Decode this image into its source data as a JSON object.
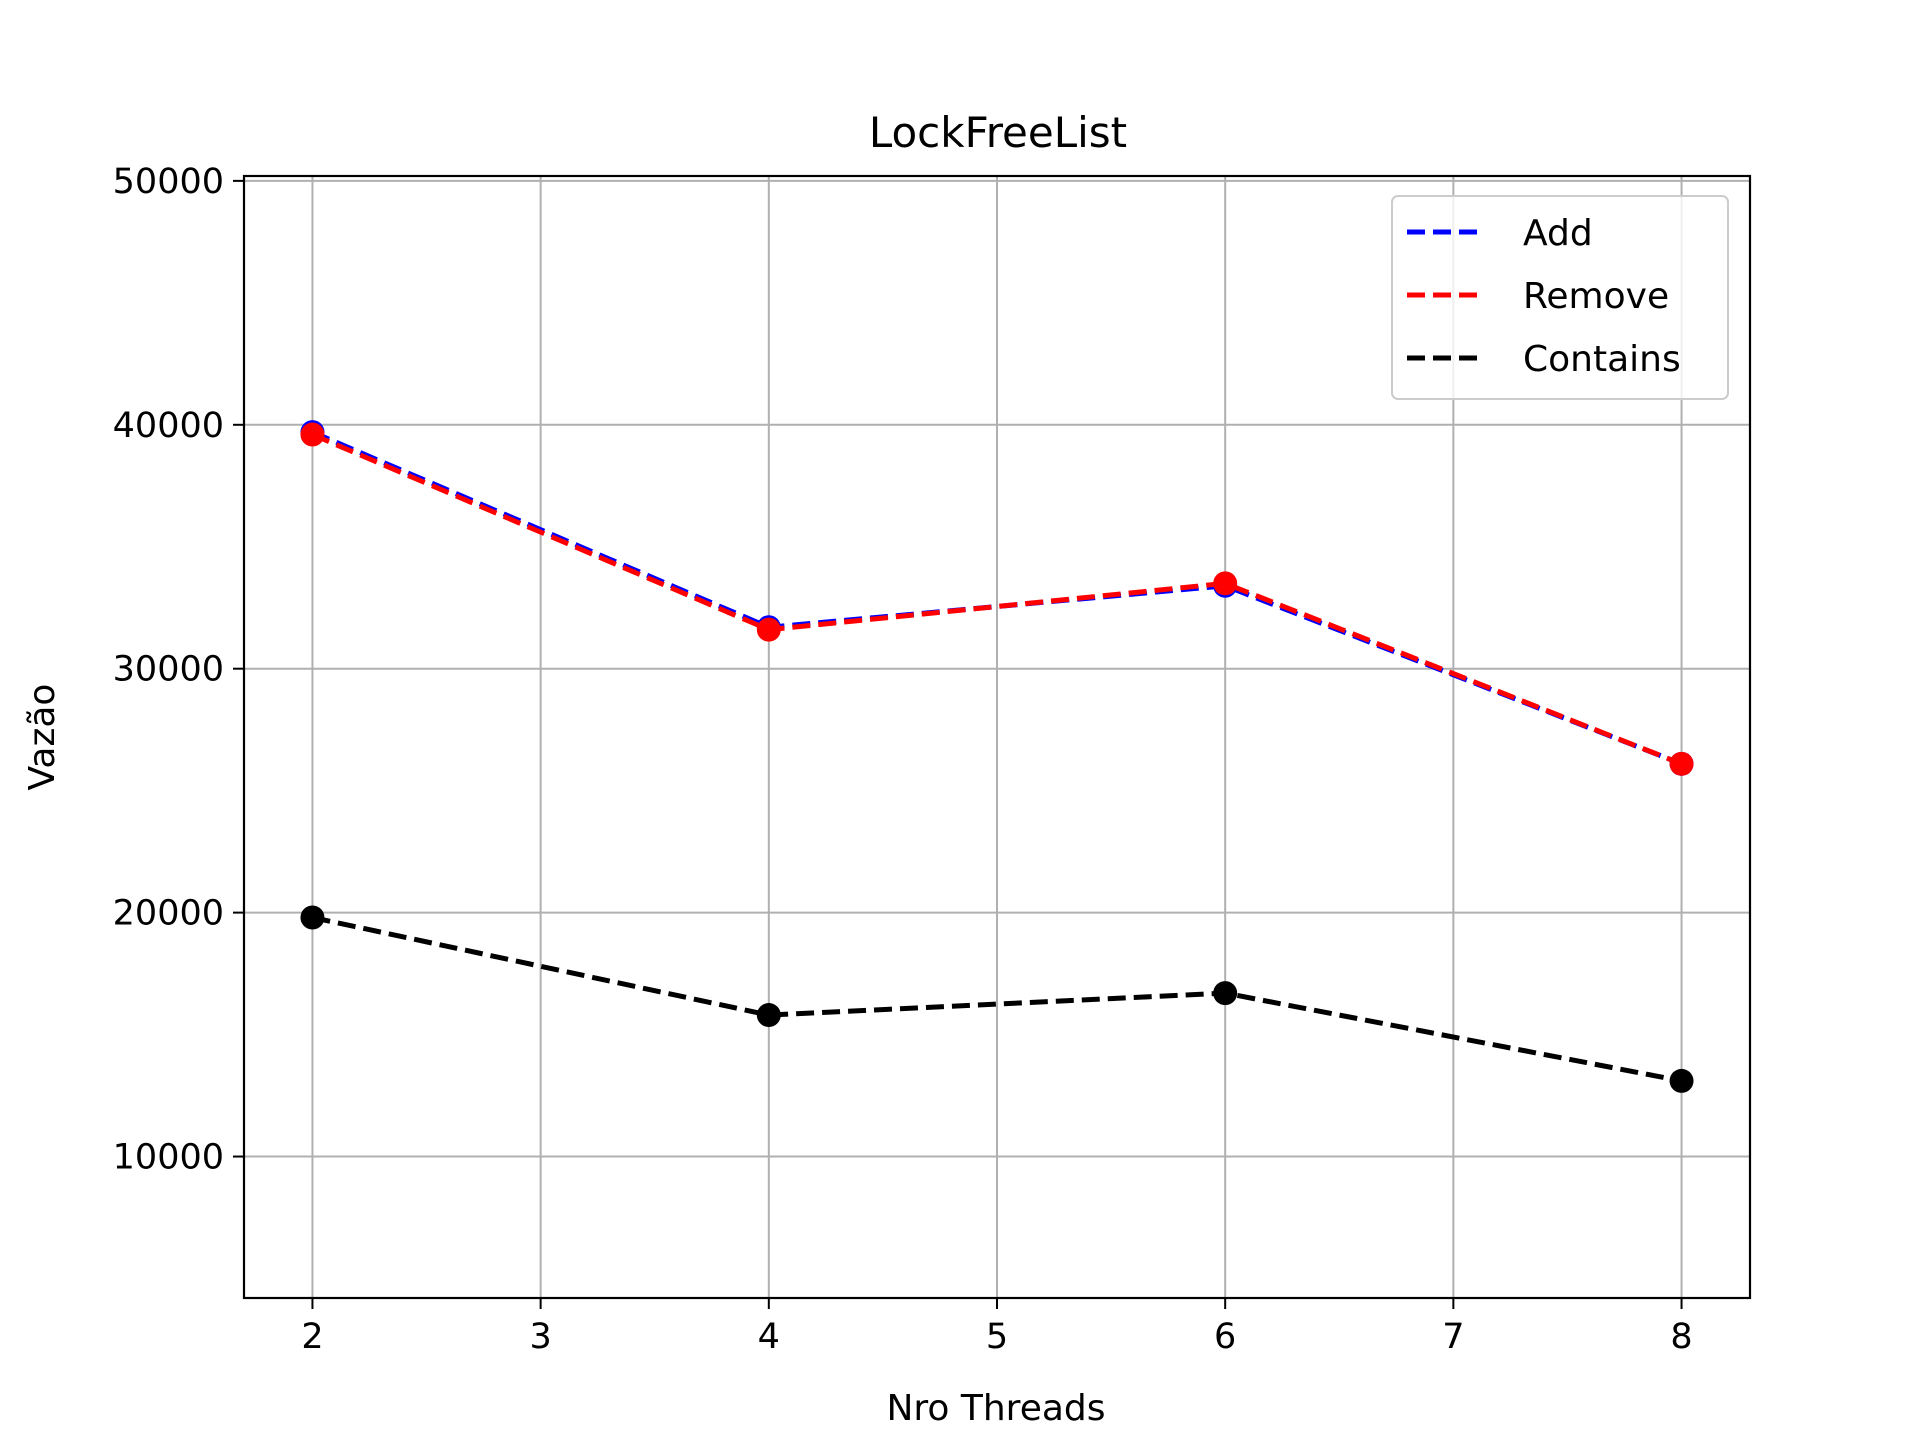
{
  "chart_data": {
    "type": "line",
    "title": "LockFreeList",
    "xlabel": "Nro Threads",
    "ylabel": "Vazão",
    "x": [
      2,
      4,
      6,
      8
    ],
    "xticks": [
      "2",
      "3",
      "4",
      "5",
      "6",
      "7",
      "8"
    ],
    "xlim": [
      1.7,
      8.3
    ],
    "yticks": [
      "10000",
      "20000",
      "30000",
      "40000",
      "50000"
    ],
    "ylim": [
      4200,
      50200
    ],
    "grid": true,
    "legend_position": "top-right",
    "series": [
      {
        "name": "Add",
        "color": "#0000ff",
        "line_style": "dashed",
        "marker": "circle",
        "values": [
          39700,
          31700,
          33400,
          26100
        ]
      },
      {
        "name": "Remove",
        "color": "#ff0000",
        "line_style": "dashed",
        "marker": "circle",
        "values": [
          39600,
          31600,
          33500,
          26100
        ]
      },
      {
        "name": "Contains",
        "color": "#000000",
        "line_style": "dashed",
        "marker": "circle",
        "values": [
          19800,
          15800,
          16700,
          13100
        ]
      }
    ]
  }
}
